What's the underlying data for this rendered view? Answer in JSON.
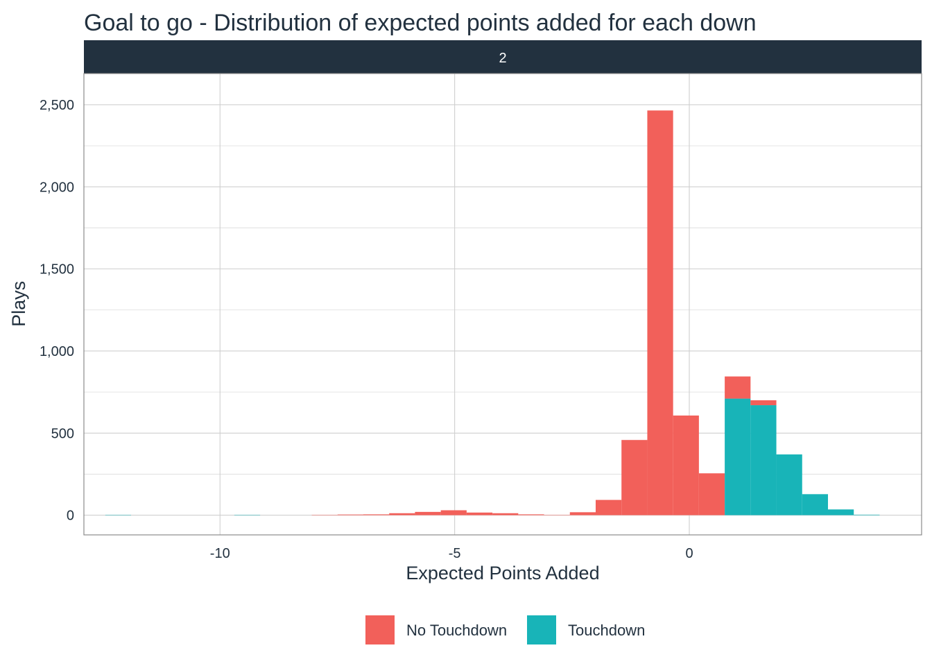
{
  "chart_data": {
    "type": "bar",
    "subtype": "stacked-histogram",
    "title": "Goal to go - Distribution of expected points added for each down",
    "facet_label": "2",
    "xlabel": "Expected Points Added",
    "ylabel": "Plays",
    "xlim": [
      -12.9,
      4.95
    ],
    "ylim": [
      -120,
      2690
    ],
    "x_ticks": [
      -10,
      -5,
      0
    ],
    "x_tick_labels": [
      "-10",
      "-5",
      "0"
    ],
    "y_ticks": [
      0,
      500,
      1000,
      1500,
      2000,
      2500
    ],
    "y_tick_labels": [
      "0",
      "500",
      "1,000",
      "1,500",
      "2,000",
      "2,500"
    ],
    "grid": true,
    "legend_position": "bottom",
    "bin_width": 0.55,
    "bins": [
      {
        "x": -12.17,
        "no_touchdown": 0,
        "touchdown": 2
      },
      {
        "x": -9.42,
        "no_touchdown": 0,
        "touchdown": 2
      },
      {
        "x": -7.77,
        "no_touchdown": 2,
        "touchdown": 0
      },
      {
        "x": -7.22,
        "no_touchdown": 4,
        "touchdown": 0
      },
      {
        "x": -6.67,
        "no_touchdown": 5,
        "touchdown": 0
      },
      {
        "x": -6.12,
        "no_touchdown": 12,
        "touchdown": 0
      },
      {
        "x": -5.57,
        "no_touchdown": 20,
        "touchdown": 0
      },
      {
        "x": -5.02,
        "no_touchdown": 30,
        "touchdown": 0
      },
      {
        "x": -4.47,
        "no_touchdown": 16,
        "touchdown": 0
      },
      {
        "x": -3.92,
        "no_touchdown": 12,
        "touchdown": 0
      },
      {
        "x": -3.37,
        "no_touchdown": 5,
        "touchdown": 0
      },
      {
        "x": -2.82,
        "no_touchdown": 2,
        "touchdown": 0
      },
      {
        "x": -2.27,
        "no_touchdown": 18,
        "touchdown": 0
      },
      {
        "x": -1.72,
        "no_touchdown": 93,
        "touchdown": 0
      },
      {
        "x": -1.17,
        "no_touchdown": 458,
        "touchdown": 0
      },
      {
        "x": -0.62,
        "no_touchdown": 2465,
        "touchdown": 0
      },
      {
        "x": -0.07,
        "no_touchdown": 607,
        "touchdown": 0
      },
      {
        "x": 0.48,
        "no_touchdown": 255,
        "touchdown": 0
      },
      {
        "x": 1.03,
        "no_touchdown": 135,
        "touchdown": 710
      },
      {
        "x": 1.58,
        "no_touchdown": 30,
        "touchdown": 670
      },
      {
        "x": 2.13,
        "no_touchdown": 0,
        "touchdown": 370
      },
      {
        "x": 2.68,
        "no_touchdown": 0,
        "touchdown": 128
      },
      {
        "x": 3.23,
        "no_touchdown": 0,
        "touchdown": 35
      },
      {
        "x": 3.78,
        "no_touchdown": 0,
        "touchdown": 3
      }
    ],
    "series": [
      {
        "name": "No Touchdown",
        "key": "no_touchdown",
        "color": "#f2605a"
      },
      {
        "name": "Touchdown",
        "key": "touchdown",
        "color": "#18b4b8"
      }
    ]
  },
  "colors": {
    "text": "#22313f",
    "strip_background": "#22313f",
    "panel_border": "#8a8a8a",
    "grid": "#cfcfcf"
  }
}
